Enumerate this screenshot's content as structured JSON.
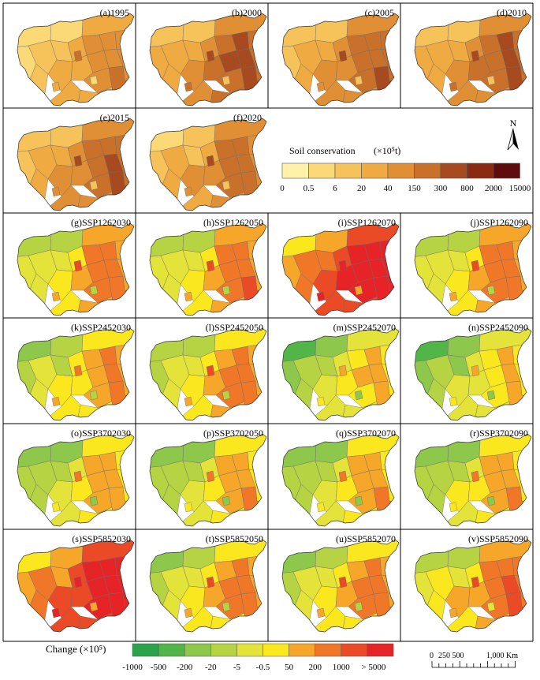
{
  "panels_historical": [
    {
      "label": "(a)1995",
      "class_mean": 2.2
    },
    {
      "label": "(b)2000",
      "class_mean": 3.6
    },
    {
      "label": "(c)2005",
      "class_mean": 3.2
    },
    {
      "label": "(d)2010",
      "class_mean": 3.5
    },
    {
      "label": "(e)2015",
      "class_mean": 3.3
    },
    {
      "label": "(f)2020",
      "class_mean": 3.0
    }
  ],
  "panels_change": [
    {
      "label": "(g)SSP1262030",
      "class_mean": 4.6
    },
    {
      "label": "(h)SSP1262050",
      "class_mean": 4.7
    },
    {
      "label": "(i)SSP1262070",
      "class_mean": 7.4
    },
    {
      "label": "(j)SSP1262090",
      "class_mean": 4.6
    },
    {
      "label": "(k)SSP2452030",
      "class_mean": 4.2
    },
    {
      "label": "(l)SSP2452050",
      "class_mean": 4.5
    },
    {
      "label": "(m)SSP2452070",
      "class_mean": 3.3
    },
    {
      "label": "(n)SSP2452090",
      "class_mean": 3.2
    },
    {
      "label": "(o)SSP3702030",
      "class_mean": 3.6
    },
    {
      "label": "(p)SSP3702050",
      "class_mean": 3.7
    },
    {
      "label": "(q)SSP3702070",
      "class_mean": 3.7
    },
    {
      "label": "(r)SSP3702090",
      "class_mean": 3.8
    },
    {
      "label": "(s)SSP5852030",
      "class_mean": 7.2
    },
    {
      "label": "(t)SSP5852050",
      "class_mean": 4.4
    },
    {
      "label": "(u)SSP5852070",
      "class_mean": 4.4
    },
    {
      "label": "(v)SSP5852090",
      "class_mean": 5.0
    }
  ],
  "legend_soil": {
    "title": "Soil conservation",
    "unit": "(×10⁵t)",
    "breaks": [
      "0",
      "0.5",
      "6",
      "20",
      "40",
      "150",
      "300",
      "800",
      "2000",
      "15000"
    ],
    "colors": [
      "#fff2a8",
      "#fbd976",
      "#f6c25a",
      "#efaa42",
      "#e18f35",
      "#c9712a",
      "#a84a1f",
      "#8b2a12",
      "#5e0c0c"
    ]
  },
  "legend_change": {
    "title": "Change (×10⁵)",
    "breaks": [
      "-1000",
      "-500",
      "-200",
      "-20",
      "-5",
      "-0.5",
      "50",
      "200",
      "1000",
      "> 5000"
    ],
    "colors": [
      "#2ba34a",
      "#52b548",
      "#8dc74b",
      "#b6d343",
      "#e3e33a",
      "#fbe71d",
      "#f6a629",
      "#f07727",
      "#ea4a26",
      "#e62428"
    ]
  },
  "north_arrow": {
    "label": "N"
  },
  "scale_bar": {
    "labels": [
      "0",
      "250 500",
      "1,000 Km"
    ]
  }
}
